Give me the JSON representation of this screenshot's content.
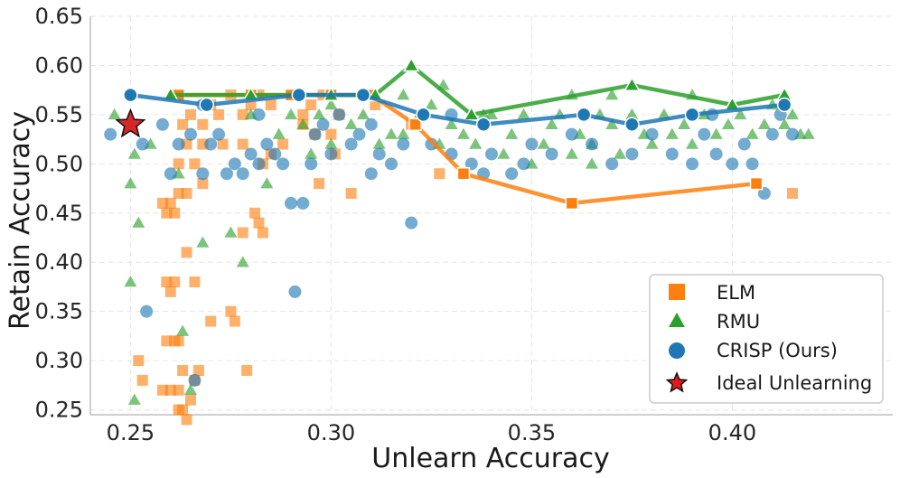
{
  "chart_data": {
    "type": "scatter",
    "xlabel": "Unlearn Accuracy",
    "ylabel": "Retain Accuracy",
    "xlim": [
      0.24,
      0.44
    ],
    "ylim": [
      0.245,
      0.65
    ],
    "xticks": [
      "0.25",
      "0.30",
      "0.35",
      "0.40"
    ],
    "yticks": [
      "0.25",
      "0.30",
      "0.35",
      "0.40",
      "0.45",
      "0.50",
      "0.55",
      "0.60",
      "0.65"
    ],
    "grid": true,
    "legend_position": "bottom-right",
    "colors": {
      "ELM": "#ff7f0e",
      "RMU": "#2ca02c",
      "CRISP (Ours)": "#1f77b4",
      "Ideal Unlearning": "#d62728"
    },
    "legend": [
      "ELM",
      "RMU",
      "CRISP (Ours)",
      "Ideal Unlearning"
    ],
    "series": [
      {
        "name": "ELM",
        "marker": "square",
        "color": "#ff7f0e",
        "points": [
          [
            0.258,
            0.46
          ],
          [
            0.26,
            0.46
          ],
          [
            0.262,
            0.47
          ],
          [
            0.264,
            0.47
          ],
          [
            0.259,
            0.45
          ],
          [
            0.261,
            0.45
          ],
          [
            0.26,
            0.37
          ],
          [
            0.259,
            0.38
          ],
          [
            0.261,
            0.38
          ],
          [
            0.259,
            0.32
          ],
          [
            0.261,
            0.32
          ],
          [
            0.262,
            0.32
          ],
          [
            0.258,
            0.27
          ],
          [
            0.26,
            0.27
          ],
          [
            0.262,
            0.27
          ],
          [
            0.263,
            0.25
          ],
          [
            0.262,
            0.25
          ],
          [
            0.264,
            0.24
          ],
          [
            0.265,
            0.26
          ],
          [
            0.266,
            0.28
          ],
          [
            0.267,
            0.29
          ],
          [
            0.263,
            0.29
          ],
          [
            0.266,
            0.38
          ],
          [
            0.264,
            0.41
          ],
          [
            0.27,
            0.34
          ],
          [
            0.275,
            0.35
          ],
          [
            0.276,
            0.34
          ],
          [
            0.278,
            0.43
          ],
          [
            0.281,
            0.45
          ],
          [
            0.282,
            0.44
          ],
          [
            0.283,
            0.43
          ],
          [
            0.279,
            0.29
          ],
          [
            0.252,
            0.3
          ],
          [
            0.253,
            0.28
          ],
          [
            0.262,
            0.5
          ],
          [
            0.264,
            0.52
          ],
          [
            0.266,
            0.5
          ],
          [
            0.268,
            0.48
          ],
          [
            0.268,
            0.52
          ],
          [
            0.263,
            0.54
          ],
          [
            0.265,
            0.55
          ],
          [
            0.27,
            0.56
          ],
          [
            0.272,
            0.55
          ],
          [
            0.275,
            0.57
          ],
          [
            0.278,
            0.55
          ],
          [
            0.28,
            0.56
          ],
          [
            0.282,
            0.57
          ],
          [
            0.285,
            0.56
          ],
          [
            0.29,
            0.57
          ],
          [
            0.293,
            0.55
          ],
          [
            0.295,
            0.56
          ],
          [
            0.298,
            0.57
          ],
          [
            0.3,
            0.53
          ],
          [
            0.302,
            0.55
          ],
          [
            0.305,
            0.47
          ],
          [
            0.297,
            0.48
          ],
          [
            0.293,
            0.54
          ],
          [
            0.288,
            0.52
          ],
          [
            0.285,
            0.51
          ],
          [
            0.301,
            0.51
          ],
          [
            0.309,
            0.57
          ],
          [
            0.311,
            0.56
          ],
          [
            0.32,
            0.54
          ],
          [
            0.327,
            0.49
          ],
          [
            0.415,
            0.47
          ],
          [
            0.278,
            0.52
          ],
          [
            0.283,
            0.5
          ],
          [
            0.296,
            0.53
          ],
          [
            0.268,
            0.54
          ],
          [
            0.273,
            0.52
          ]
        ]
      },
      {
        "name": "RMU",
        "marker": "triangle",
        "color": "#2ca02c",
        "points": [
          [
            0.246,
            0.55
          ],
          [
            0.25,
            0.48
          ],
          [
            0.251,
            0.51
          ],
          [
            0.252,
            0.44
          ],
          [
            0.25,
            0.38
          ],
          [
            0.251,
            0.26
          ],
          [
            0.255,
            0.52
          ],
          [
            0.262,
            0.49
          ],
          [
            0.263,
            0.33
          ],
          [
            0.265,
            0.27
          ],
          [
            0.268,
            0.42
          ],
          [
            0.275,
            0.43
          ],
          [
            0.278,
            0.4
          ],
          [
            0.28,
            0.55
          ],
          [
            0.284,
            0.48
          ],
          [
            0.287,
            0.53
          ],
          [
            0.29,
            0.55
          ],
          [
            0.293,
            0.54
          ],
          [
            0.297,
            0.55
          ],
          [
            0.3,
            0.56
          ],
          [
            0.305,
            0.54
          ],
          [
            0.308,
            0.55
          ],
          [
            0.312,
            0.52
          ],
          [
            0.315,
            0.53
          ],
          [
            0.318,
            0.53
          ],
          [
            0.322,
            0.55
          ],
          [
            0.325,
            0.56
          ],
          [
            0.327,
            0.52
          ],
          [
            0.33,
            0.54
          ],
          [
            0.333,
            0.53
          ],
          [
            0.336,
            0.52
          ],
          [
            0.34,
            0.55
          ],
          [
            0.343,
            0.51
          ],
          [
            0.345,
            0.53
          ],
          [
            0.348,
            0.55
          ],
          [
            0.35,
            0.5
          ],
          [
            0.353,
            0.52
          ],
          [
            0.355,
            0.54
          ],
          [
            0.357,
            0.55
          ],
          [
            0.36,
            0.51
          ],
          [
            0.362,
            0.53
          ],
          [
            0.365,
            0.52
          ],
          [
            0.367,
            0.55
          ],
          [
            0.37,
            0.54
          ],
          [
            0.372,
            0.51
          ],
          [
            0.375,
            0.55
          ],
          [
            0.378,
            0.53
          ],
          [
            0.38,
            0.52
          ],
          [
            0.383,
            0.55
          ],
          [
            0.385,
            0.53
          ],
          [
            0.388,
            0.54
          ],
          [
            0.39,
            0.52
          ],
          [
            0.393,
            0.55
          ],
          [
            0.396,
            0.53
          ],
          [
            0.399,
            0.54
          ],
          [
            0.402,
            0.55
          ],
          [
            0.405,
            0.53
          ],
          [
            0.408,
            0.54
          ],
          [
            0.41,
            0.56
          ],
          [
            0.413,
            0.54
          ],
          [
            0.415,
            0.55
          ],
          [
            0.417,
            0.53
          ],
          [
            0.419,
            0.53
          ],
          [
            0.318,
            0.57
          ],
          [
            0.328,
            0.58
          ],
          [
            0.338,
            0.55
          ],
          [
            0.36,
            0.57
          ],
          [
            0.37,
            0.57
          ],
          [
            0.39,
            0.57
          ],
          [
            0.365,
            0.5
          ],
          [
            0.3,
            0.52
          ],
          [
            0.295,
            0.51
          ]
        ]
      },
      {
        "name": "CRISP (Ours)",
        "marker": "circle",
        "color": "#1f77b4",
        "points": [
          [
            0.245,
            0.53
          ],
          [
            0.253,
            0.52
          ],
          [
            0.254,
            0.35
          ],
          [
            0.258,
            0.54
          ],
          [
            0.26,
            0.49
          ],
          [
            0.262,
            0.52
          ],
          [
            0.265,
            0.53
          ],
          [
            0.266,
            0.28
          ],
          [
            0.268,
            0.49
          ],
          [
            0.27,
            0.52
          ],
          [
            0.272,
            0.53
          ],
          [
            0.274,
            0.49
          ],
          [
            0.276,
            0.5
          ],
          [
            0.278,
            0.49
          ],
          [
            0.28,
            0.51
          ],
          [
            0.282,
            0.5
          ],
          [
            0.284,
            0.52
          ],
          [
            0.286,
            0.51
          ],
          [
            0.288,
            0.5
          ],
          [
            0.29,
            0.46
          ],
          [
            0.291,
            0.37
          ],
          [
            0.293,
            0.46
          ],
          [
            0.295,
            0.5
          ],
          [
            0.298,
            0.54
          ],
          [
            0.3,
            0.51
          ],
          [
            0.302,
            0.55
          ],
          [
            0.305,
            0.52
          ],
          [
            0.307,
            0.53
          ],
          [
            0.31,
            0.49
          ],
          [
            0.312,
            0.51
          ],
          [
            0.315,
            0.5
          ],
          [
            0.318,
            0.52
          ],
          [
            0.32,
            0.44
          ],
          [
            0.325,
            0.52
          ],
          [
            0.33,
            0.51
          ],
          [
            0.335,
            0.5
          ],
          [
            0.338,
            0.49
          ],
          [
            0.34,
            0.51
          ],
          [
            0.345,
            0.49
          ],
          [
            0.348,
            0.5
          ],
          [
            0.35,
            0.52
          ],
          [
            0.355,
            0.51
          ],
          [
            0.36,
            0.53
          ],
          [
            0.365,
            0.52
          ],
          [
            0.37,
            0.5
          ],
          [
            0.375,
            0.51
          ],
          [
            0.38,
            0.53
          ],
          [
            0.385,
            0.51
          ],
          [
            0.39,
            0.5
          ],
          [
            0.393,
            0.53
          ],
          [
            0.396,
            0.51
          ],
          [
            0.4,
            0.5
          ],
          [
            0.403,
            0.52
          ],
          [
            0.405,
            0.5
          ],
          [
            0.408,
            0.47
          ],
          [
            0.41,
            0.53
          ],
          [
            0.412,
            0.55
          ],
          [
            0.415,
            0.53
          ],
          [
            0.268,
            0.56
          ],
          [
            0.282,
            0.55
          ],
          [
            0.296,
            0.53
          ],
          [
            0.31,
            0.54
          ],
          [
            0.33,
            0.55
          ],
          [
            0.395,
            0.55
          ]
        ]
      }
    ],
    "frontiers": [
      {
        "name": "ELM",
        "points": [
          [
            0.262,
            0.57
          ],
          [
            0.28,
            0.57
          ],
          [
            0.29,
            0.57
          ],
          [
            0.3,
            0.57
          ],
          [
            0.31,
            0.57
          ],
          [
            0.321,
            0.54
          ],
          [
            0.333,
            0.49
          ],
          [
            0.36,
            0.46
          ],
          [
            0.406,
            0.48
          ]
        ]
      },
      {
        "name": "RMU",
        "points": [
          [
            0.26,
            0.57
          ],
          [
            0.28,
            0.57
          ],
          [
            0.3,
            0.57
          ],
          [
            0.311,
            0.57
          ],
          [
            0.32,
            0.6
          ],
          [
            0.335,
            0.55
          ],
          [
            0.375,
            0.58
          ],
          [
            0.4,
            0.56
          ],
          [
            0.413,
            0.57
          ]
        ]
      },
      {
        "name": "CRISP (Ours)",
        "points": [
          [
            0.25,
            0.57
          ],
          [
            0.269,
            0.56
          ],
          [
            0.292,
            0.57
          ],
          [
            0.308,
            0.57
          ],
          [
            0.323,
            0.55
          ],
          [
            0.338,
            0.54
          ],
          [
            0.363,
            0.55
          ],
          [
            0.375,
            0.54
          ],
          [
            0.39,
            0.55
          ],
          [
            0.413,
            0.56
          ]
        ]
      }
    ],
    "ideal_point": {
      "name": "Ideal Unlearning",
      "x": 0.25,
      "y": 0.54
    }
  }
}
